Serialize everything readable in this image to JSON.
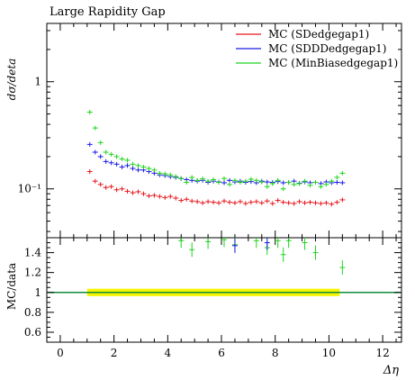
{
  "chart_data": [
    {
      "type": "scatter",
      "title": "Large Rapidity Gap",
      "ylabel": "dσ/deta",
      "yscale": "log",
      "ylim": [
        0.035,
        3.5
      ],
      "xlim": [
        -0.5,
        12.7
      ],
      "yticks": [
        {
          "value": 1,
          "label": "1"
        },
        {
          "value": 0.1,
          "label": "10⁻¹"
        }
      ],
      "legend_position": "top-right",
      "series": [
        {
          "name": "MC (SDedgegap1)",
          "color": "#e8141b",
          "x": [
            1.1,
            1.3,
            1.5,
            1.7,
            1.9,
            2.1,
            2.3,
            2.5,
            2.7,
            2.9,
            3.1,
            3.3,
            3.5,
            3.7,
            3.9,
            4.1,
            4.3,
            4.5,
            4.7,
            4.9,
            5.1,
            5.3,
            5.5,
            5.7,
            5.9,
            6.1,
            6.3,
            6.5,
            6.7,
            6.9,
            7.1,
            7.3,
            7.5,
            7.7,
            7.9,
            8.1,
            8.3,
            8.5,
            8.7,
            8.9,
            9.1,
            9.3,
            9.5,
            9.7,
            9.9,
            10.1,
            10.3,
            10.5
          ],
          "y": [
            0.145,
            0.118,
            0.11,
            0.103,
            0.105,
            0.098,
            0.1,
            0.095,
            0.092,
            0.094,
            0.09,
            0.086,
            0.087,
            0.085,
            0.083,
            0.085,
            0.082,
            0.078,
            0.08,
            0.077,
            0.076,
            0.074,
            0.076,
            0.075,
            0.074,
            0.077,
            0.075,
            0.074,
            0.076,
            0.073,
            0.075,
            0.076,
            0.074,
            0.077,
            0.073,
            0.078,
            0.075,
            0.074,
            0.073,
            0.076,
            0.074,
            0.075,
            0.074,
            0.073,
            0.074,
            0.072,
            0.075,
            0.079
          ]
        },
        {
          "name": "MC (SDDDedgegap1)",
          "color": "#1a1ae6",
          "x": [
            1.1,
            1.3,
            1.5,
            1.7,
            1.9,
            2.1,
            2.3,
            2.5,
            2.7,
            2.9,
            3.1,
            3.3,
            3.5,
            3.7,
            3.9,
            4.1,
            4.3,
            4.5,
            4.7,
            4.9,
            5.1,
            5.3,
            5.5,
            5.7,
            5.9,
            6.1,
            6.3,
            6.5,
            6.7,
            6.9,
            7.1,
            7.3,
            7.5,
            7.7,
            7.9,
            8.1,
            8.3,
            8.5,
            8.7,
            8.9,
            9.1,
            9.3,
            9.5,
            9.7,
            9.9,
            10.1,
            10.3,
            10.5
          ],
          "y": [
            0.26,
            0.22,
            0.2,
            0.18,
            0.175,
            0.17,
            0.16,
            0.165,
            0.155,
            0.15,
            0.15,
            0.145,
            0.14,
            0.135,
            0.133,
            0.13,
            0.128,
            0.125,
            0.122,
            0.12,
            0.118,
            0.12,
            0.115,
            0.118,
            0.116,
            0.114,
            0.12,
            0.116,
            0.118,
            0.115,
            0.117,
            0.114,
            0.118,
            0.116,
            0.115,
            0.117,
            0.114,
            0.115,
            0.118,
            0.113,
            0.116,
            0.114,
            0.115,
            0.112,
            0.116,
            0.114,
            0.115,
            0.114
          ]
        },
        {
          "name": "MC (MinBiasedgegap1)",
          "color": "#1ed41e",
          "x": [
            1.1,
            1.3,
            1.5,
            1.7,
            1.9,
            2.1,
            2.3,
            2.5,
            2.7,
            2.9,
            3.1,
            3.3,
            3.5,
            3.7,
            3.9,
            4.1,
            4.3,
            4.5,
            4.7,
            4.9,
            5.1,
            5.3,
            5.5,
            5.7,
            5.9,
            6.1,
            6.3,
            6.5,
            6.7,
            6.9,
            7.1,
            7.3,
            7.5,
            7.7,
            7.9,
            8.1,
            8.3,
            8.5,
            8.7,
            8.9,
            9.1,
            9.3,
            9.5,
            9.7,
            9.9,
            10.1,
            10.3,
            10.5
          ],
          "y": [
            0.52,
            0.37,
            0.27,
            0.22,
            0.21,
            0.2,
            0.19,
            0.185,
            0.17,
            0.165,
            0.16,
            0.155,
            0.15,
            0.14,
            0.138,
            0.135,
            0.13,
            0.125,
            0.115,
            0.128,
            0.12,
            0.124,
            0.118,
            0.122,
            0.115,
            0.125,
            0.11,
            0.12,
            0.115,
            0.118,
            0.123,
            0.12,
            0.116,
            0.105,
            0.112,
            0.12,
            0.1,
            0.115,
            0.11,
            0.112,
            0.118,
            0.108,
            0.115,
            0.105,
            0.11,
            0.118,
            0.128,
            0.14
          ]
        }
      ]
    },
    {
      "type": "scatter",
      "ylabel": "MC/data",
      "xlabel": "Δη",
      "xlim": [
        -0.5,
        12.7
      ],
      "ylim": [
        0.5,
        1.55
      ],
      "xticks": [
        0,
        2,
        4,
        6,
        8,
        10,
        12
      ],
      "yticks": [
        0.6,
        0.8,
        1,
        1.2,
        1.4
      ],
      "reference_line": 1,
      "band": {
        "xrange": [
          1.0,
          10.4
        ],
        "yrange": [
          0.99,
          1.01
        ],
        "color": "#f5f500"
      },
      "series": [
        {
          "name": "MC (MinBiasedgegap1)",
          "color": "#1ed41e",
          "x": [
            4.5,
            4.9,
            5.5,
            6.1,
            6.5,
            7.3,
            7.7,
            8.1,
            8.3,
            8.5,
            9.1,
            9.5,
            10.5
          ],
          "y": [
            1.52,
            1.43,
            1.51,
            1.53,
            1.48,
            1.52,
            1.45,
            1.52,
            1.38,
            1.52,
            1.5,
            1.4,
            1.25
          ]
        },
        {
          "name": "MC (SDDDedgegap1)",
          "color": "#1a1ae6",
          "x": [
            6.5,
            7.7
          ],
          "y": [
            1.47,
            1.5
          ]
        }
      ]
    }
  ]
}
